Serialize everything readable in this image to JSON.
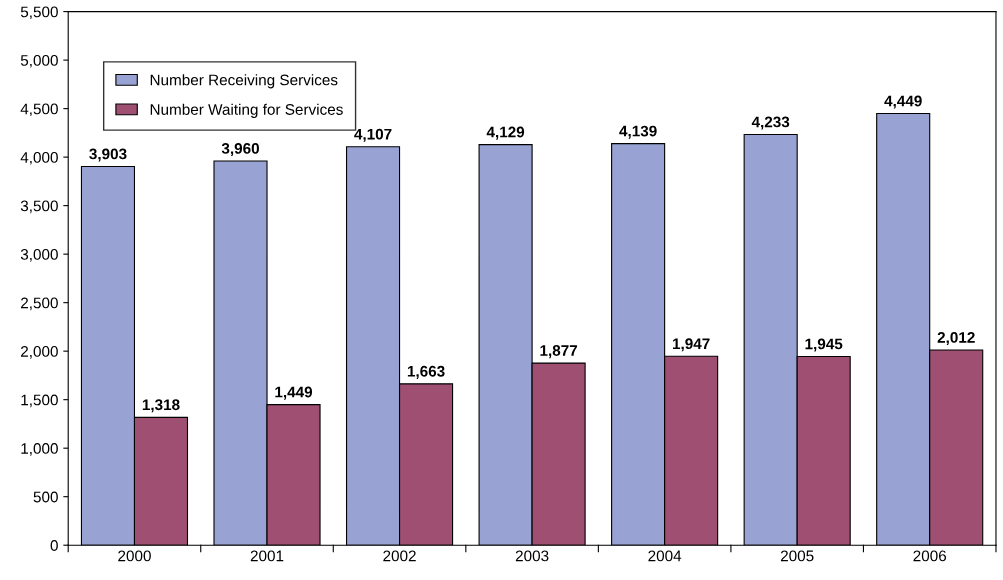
{
  "chart_data": {
    "type": "bar",
    "categories": [
      "2000",
      "2001",
      "2002",
      "2003",
      "2004",
      "2005",
      "2006"
    ],
    "series": [
      {
        "name": "Number Receiving Services",
        "color": "#99a3d3",
        "values": [
          3903,
          3960,
          4107,
          4129,
          4139,
          4233,
          4449
        ],
        "value_labels": [
          "3,903",
          "3,960",
          "4,107",
          "4,129",
          "4,139",
          "4,233",
          "4,449"
        ]
      },
      {
        "name": "Number Waiting for Services",
        "color": "#9e4f72",
        "values": [
          1318,
          1449,
          1663,
          1877,
          1947,
          1945,
          2012
        ],
        "value_labels": [
          "1,318",
          "1,449",
          "1,663",
          "1,877",
          "1,947",
          "1,945",
          "2,012"
        ]
      }
    ],
    "ylim": [
      0,
      5500
    ],
    "yticks": [
      0,
      500,
      {
        "value": 1000,
        "label": "1,000"
      },
      {
        "value": 1500,
        "label": "1,500"
      },
      {
        "value": 2000,
        "label": "2,000"
      },
      {
        "value": 2500,
        "label": "2,500"
      },
      {
        "value": 3000,
        "label": "3,000"
      },
      {
        "value": 3500,
        "label": "3,500"
      },
      {
        "value": 4000,
        "label": "4,000"
      },
      {
        "value": 4500,
        "label": "4,500"
      },
      {
        "value": 5000,
        "label": "5,000"
      },
      {
        "value": 5500,
        "label": "5,500"
      }
    ],
    "grid": false,
    "legend": "top left"
  }
}
